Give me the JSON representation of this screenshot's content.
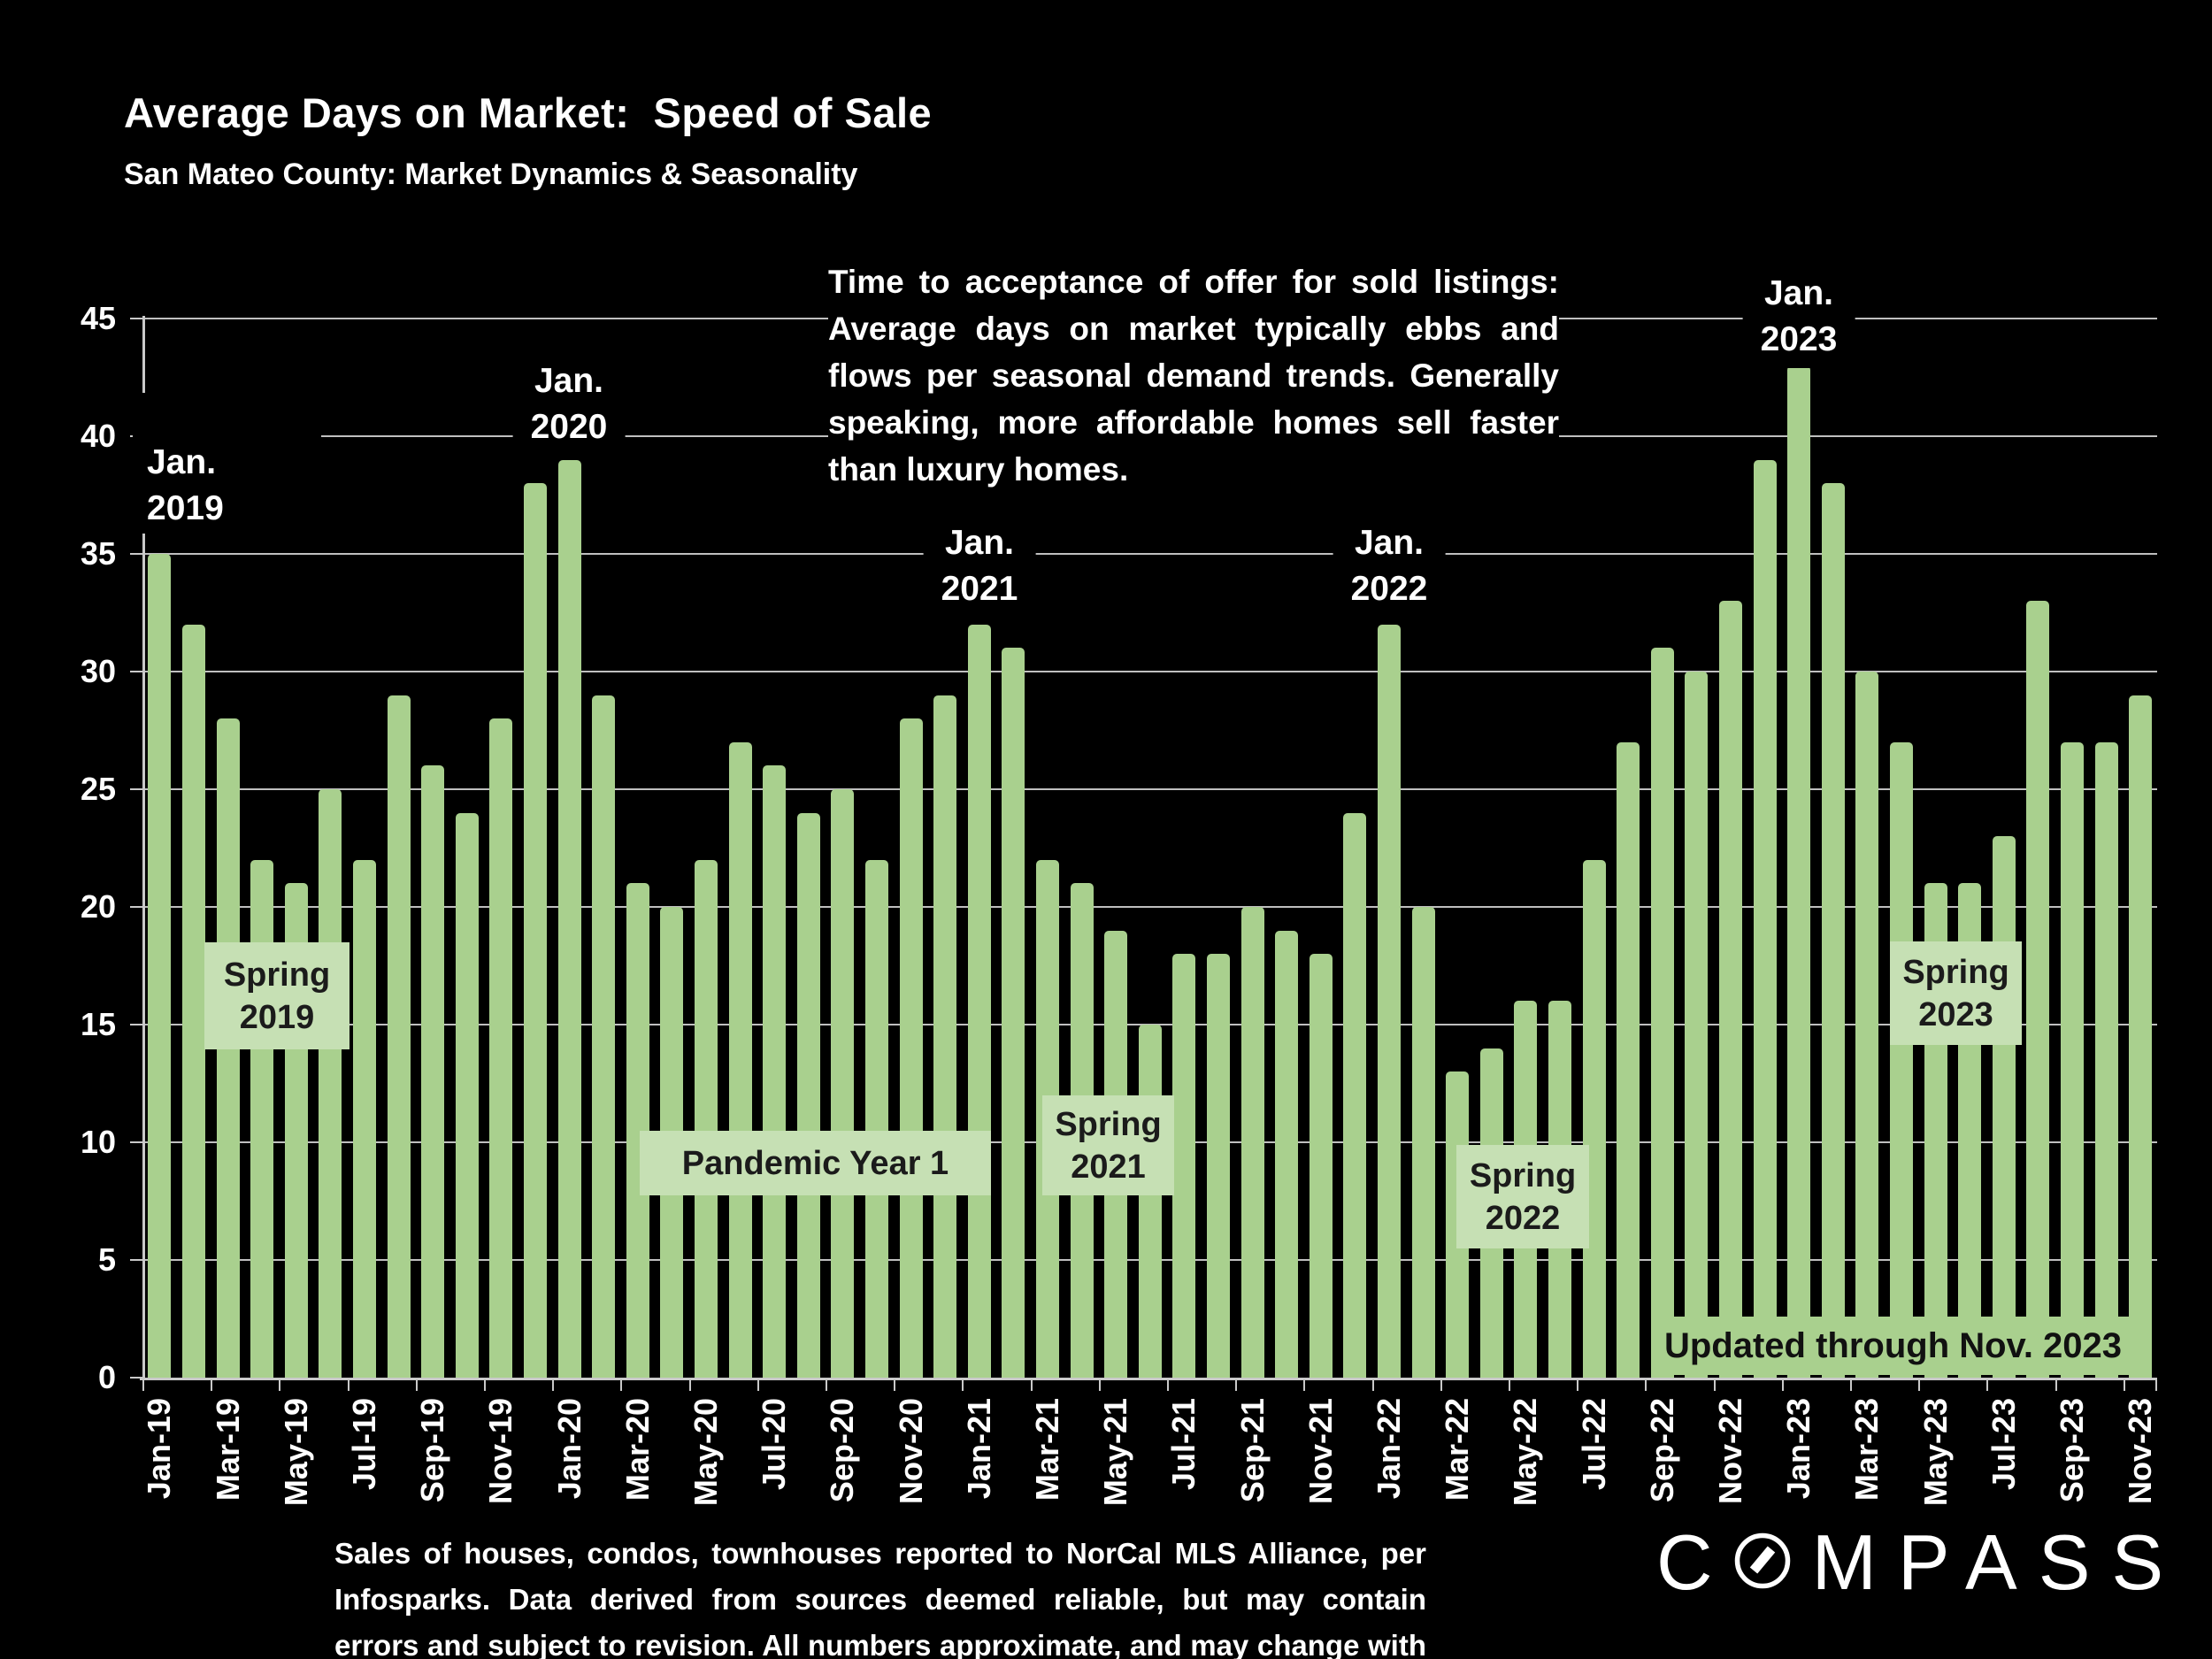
{
  "title": "Average Days on Market:  Speed of Sale",
  "subtitle": "San Mateo County: Market Dynamics & Seasonality",
  "commentary": "Time to acceptance of offer for sold listings: Average days on market typically ebbs and flows per seasonal demand trends. Generally speaking, more affordable homes sell faster than luxury homes.",
  "peak_labels": [
    "Jan.\n2019",
    "Jan.\n2020",
    "Jan.\n2021",
    "Jan.\n2022",
    "Jan.\n2023"
  ],
  "season_labels": [
    "Spring\n2019",
    "Pandemic Year 1",
    "Spring\n2021",
    "Spring\n2022",
    "Spring\n2023"
  ],
  "updated_label": "Updated through Nov. 2023",
  "footnote": "Sales of houses, condos, townhouses reported to NorCal MLS Alliance, per Infosparks. Data derived from sources deemed reliable, but may contain errors and subject to revision. All numbers approximate, and may change with late-reported sales.",
  "logo_text": "COMPASS",
  "colors": {
    "background": "#000000",
    "bar": "#A9D08E",
    "season_box": "#C6E0B4",
    "updated_box": "#A9D08E",
    "grid": "#BFBFBF",
    "text": "#FFFFFF",
    "box_text": "#1B1B1B"
  },
  "chart_data": {
    "type": "bar",
    "title": "Average Days on Market:  Speed of Sale",
    "subtitle": "San Mateo County: Market Dynamics & Seasonality",
    "ylim": [
      0,
      45
    ],
    "ytick_step": 5,
    "xlabel_every": 2,
    "grid": true,
    "legend": false,
    "categories": [
      "Jan-19",
      "Feb-19",
      "Mar-19",
      "Apr-19",
      "May-19",
      "Jun-19",
      "Jul-19",
      "Aug-19",
      "Sep-19",
      "Oct-19",
      "Nov-19",
      "Dec-19",
      "Jan-20",
      "Feb-20",
      "Mar-20",
      "Apr-20",
      "May-20",
      "Jun-20",
      "Jul-20",
      "Aug-20",
      "Sep-20",
      "Oct-20",
      "Nov-20",
      "Dec-20",
      "Jan-21",
      "Feb-21",
      "Mar-21",
      "Apr-21",
      "May-21",
      "Jun-21",
      "Jul-21",
      "Aug-21",
      "Sep-21",
      "Oct-21",
      "Nov-21",
      "Dec-21",
      "Jan-22",
      "Feb-22",
      "Mar-22",
      "Apr-22",
      "May-22",
      "Jun-22",
      "Jul-22",
      "Aug-22",
      "Sep-22",
      "Oct-22",
      "Nov-22",
      "Dec-22",
      "Jan-23",
      "Feb-23",
      "Mar-23",
      "Apr-23",
      "May-23",
      "Jun-23",
      "Jul-23",
      "Aug-23",
      "Sep-23",
      "Oct-23",
      "Nov-23"
    ],
    "values": [
      35,
      32,
      28,
      22,
      21,
      25,
      22,
      29,
      26,
      24,
      28,
      38,
      39,
      29,
      21,
      20,
      22,
      27,
      26,
      24,
      25,
      22,
      28,
      29,
      32,
      31,
      22,
      21,
      19,
      15,
      18,
      18,
      20,
      19,
      18,
      24,
      32,
      20,
      13,
      14,
      16,
      16,
      22,
      27,
      31,
      30,
      33,
      39,
      43,
      38,
      30,
      27,
      21,
      21,
      23,
      33,
      27,
      27,
      29
    ]
  }
}
